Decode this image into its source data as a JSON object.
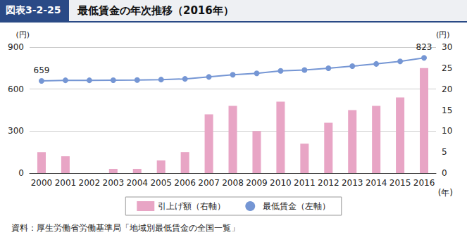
{
  "chart_data": {
    "type": "bar",
    "subtitle": "図表3-2-25",
    "title": "最低賃金の年次推移（2016年）",
    "source": "資料：厚生労働省労働基準局「地域別最低賃金の全国一覧」",
    "x_label": "(年)",
    "y_label": "(円)",
    "y2_label": "(円)",
    "categories": [
      "2000",
      "2001",
      "2002",
      "2003",
      "2004",
      "2005",
      "2006",
      "2007",
      "2008",
      "2009",
      "2010",
      "2011",
      "2012",
      "2013",
      "2014",
      "2015",
      "2016"
    ],
    "series": [
      {
        "name": "引上げ額（右軸）",
        "type": "bar",
        "axis": "y2",
        "color": "#e8a5c5",
        "values": [
          5,
          4,
          0,
          1,
          1,
          3,
          5,
          14,
          16,
          10,
          17,
          7,
          12,
          15,
          16,
          18,
          25
        ]
      },
      {
        "name": "最低賃金（左軸）",
        "type": "line",
        "marker": "circle",
        "color": "#7596d4",
        "values": [
          659,
          663,
          663,
          664,
          665,
          668,
          673,
          687,
          703,
          713,
          730,
          737,
          749,
          764,
          780,
          798,
          823
        ],
        "value_labels": [
          "659",
          null,
          null,
          null,
          null,
          null,
          null,
          null,
          null,
          null,
          null,
          null,
          null,
          null,
          null,
          null,
          "823"
        ]
      }
    ],
    "ylim": [
      0,
      900
    ],
    "yticks": [
      0,
      300,
      600,
      900
    ],
    "y2lim": [
      0,
      30
    ],
    "y2ticks": [
      0,
      5,
      10,
      15,
      20,
      25,
      30
    ],
    "grid": true,
    "legend": "bottom"
  }
}
